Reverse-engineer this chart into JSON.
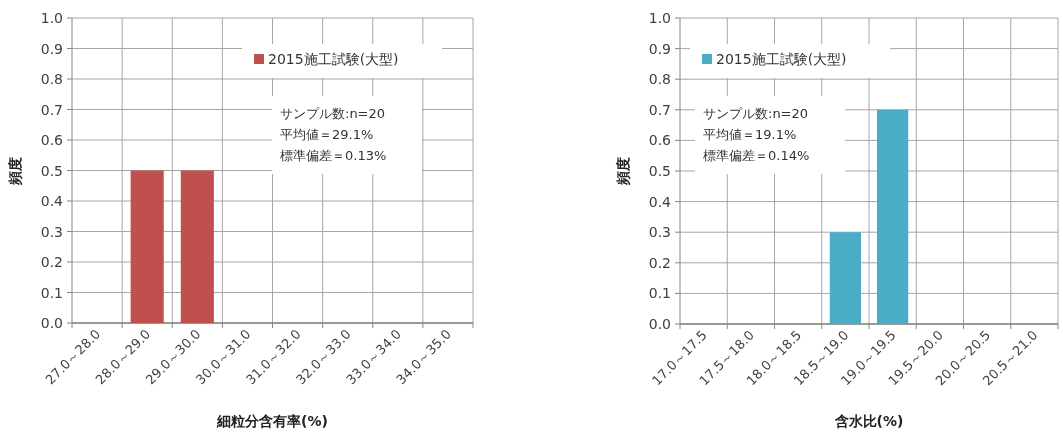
{
  "chart_data": [
    {
      "type": "bar",
      "xlabel": "細粒分含有率(%)",
      "ylabel": "頻度",
      "categories": [
        "27.0～28.0",
        "28.0～29.0",
        "29.0～30.0",
        "30.0～31.0",
        "31.0～32.0",
        "32.0～33.0",
        "33.0～34.0",
        "34.0～35.0"
      ],
      "series": [
        {
          "name": "2015施工試験(大型)",
          "color": "#c0504d",
          "values": [
            0,
            0.5,
            0.5,
            0,
            0,
            0,
            0,
            0
          ]
        }
      ],
      "ylim": [
        0,
        1
      ],
      "yticks": [
        {
          "value": 0,
          "label": "0.0"
        },
        {
          "value": 0.1,
          "label": "0.1"
        },
        {
          "value": 0.2,
          "label": "0.2"
        },
        {
          "value": 0.3,
          "label": "0.3"
        },
        {
          "value": 0.4,
          "label": "0.4"
        },
        {
          "value": 0.5,
          "label": "0.5"
        },
        {
          "value": 0.6,
          "label": "0.6"
        },
        {
          "value": 0.7,
          "label": "0.7"
        },
        {
          "value": 0.8,
          "label": "0.8"
        },
        {
          "value": 0.9,
          "label": "0.9"
        },
        {
          "value": 1,
          "label": "1.0"
        }
      ],
      "grid": true,
      "legend": "top right",
      "annotations": [
        "サンプル数:n=20",
        "平均値＝29.1%",
        "標準偏差＝0.13%"
      ]
    },
    {
      "type": "bar",
      "xlabel": "含水比(%)",
      "ylabel": "頻度",
      "categories": [
        "17.0～17.5",
        "17.5～18.0",
        "18.0～18.5",
        "18.5～19.0",
        "19.0～19.5",
        "19.5～20.0",
        "20.0～20.5",
        "20.5～21.0"
      ],
      "series": [
        {
          "name": "2015施工試験(大型)",
          "color": "#4bacc6",
          "values": [
            0,
            0,
            0,
            0.3,
            0.7,
            0,
            0,
            0
          ]
        }
      ],
      "ylim": [
        0,
        1
      ],
      "yticks": [
        {
          "value": 0,
          "label": "0.0"
        },
        {
          "value": 0.1,
          "label": "0.1"
        },
        {
          "value": 0.2,
          "label": "0.2"
        },
        {
          "value": 0.3,
          "label": "0.3"
        },
        {
          "value": 0.4,
          "label": "0.4"
        },
        {
          "value": 0.5,
          "label": "0.5"
        },
        {
          "value": 0.6,
          "label": "0.6"
        },
        {
          "value": 0.7,
          "label": "0.7"
        },
        {
          "value": 0.8,
          "label": "0.8"
        },
        {
          "value": 0.9,
          "label": "0.9"
        },
        {
          "value": 1,
          "label": "1.0"
        }
      ],
      "grid": true,
      "legend": "top left",
      "annotations": [
        "サンプル数:n=20",
        "平均値＝19.1%",
        "標準偏差＝0.14%"
      ]
    }
  ]
}
